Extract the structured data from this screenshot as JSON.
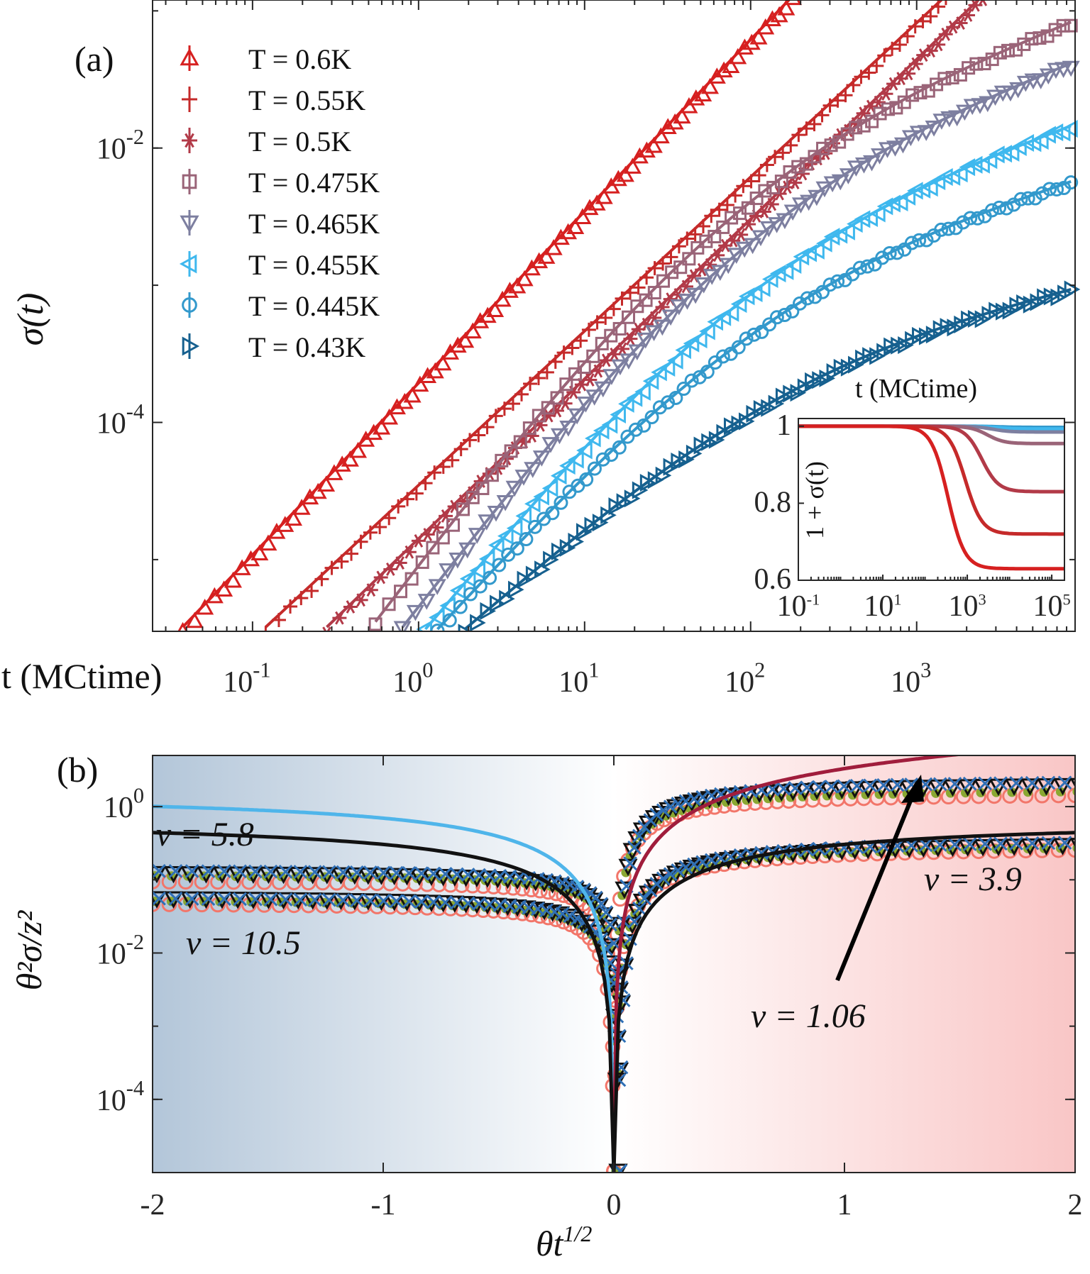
{
  "chart_data": [
    {
      "type": "line",
      "panel_label": "(a)",
      "scale": "log-log",
      "xlabel": "t  (MCtime)",
      "ylabel": "σ(t)",
      "xlim": [
        0.025,
        9000
      ],
      "ylim": [
        3e-06,
        0.12
      ],
      "xticks": [
        {
          "label": "10",
          "exp": "-1",
          "v": 0.1
        },
        {
          "label": "10",
          "exp": "0",
          "v": 1
        },
        {
          "label": "10",
          "exp": "1",
          "v": 10
        },
        {
          "label": "10",
          "exp": "2",
          "v": 100
        },
        {
          "label": "10",
          "exp": "3",
          "v": 1000
        }
      ],
      "yticks": [
        {
          "label": "10",
          "exp": "-2",
          "v": 0.01
        },
        {
          "label": "10",
          "exp": "-4",
          "v": 0.0001
        }
      ],
      "series": [
        {
          "name": "T = 0.6K",
          "color": "#d62020",
          "marker": "triangle-up",
          "x_start": 0.038,
          "x_end": 180,
          "y_start": 3e-06,
          "y_end": 0.12
        },
        {
          "name": "T = 0.55K",
          "color": "#c52a2a",
          "marker": "plus",
          "x_start": 0.12,
          "x_end": 1500,
          "y_start": 3e-06,
          "y_end": 0.12
        },
        {
          "name": "T = 0.5K",
          "color": "#b23a48",
          "marker": "asterisk",
          "x_start": 0.28,
          "x_end": 2500,
          "y_start": 3e-06,
          "y_end": 0.12
        },
        {
          "name": "T = 0.475K",
          "color": "#9a6478",
          "marker": "square",
          "x_start": 0.55,
          "x_end": 8500,
          "y_start": 3.4e-06,
          "y_end": 0.08
        },
        {
          "name": "T = 0.465K",
          "color": "#7d7fa0",
          "marker": "triangle-down",
          "x_start": 0.8,
          "x_end": 8500,
          "y_start": 3.1e-06,
          "y_end": 0.04
        },
        {
          "name": "T = 0.455K",
          "color": "#3fb8ee",
          "marker": "triangle-left",
          "x_start": 1.1,
          "x_end": 8500,
          "y_start": 3e-06,
          "y_end": 0.014
        },
        {
          "name": "T = 0.445K",
          "color": "#3399cc",
          "marker": "circle",
          "x_start": 1.3,
          "x_end": 8500,
          "y_start": 3e-06,
          "y_end": 0.0055
        },
        {
          "name": "T = 0.43K",
          "color": "#16608f",
          "marker": "triangle-right",
          "x_start": 1.9,
          "x_end": 8500,
          "y_start": 3e-06,
          "y_end": 0.0009
        }
      ],
      "inset": {
        "xlabel": "t  (MCtime)",
        "ylabel": "1 + σ(t)",
        "xlim": [
          0.1,
          200000
        ],
        "ylim": [
          0.6,
          1.02
        ],
        "xticks": [
          {
            "label": "10",
            "exp": "-1",
            "v": 0.1
          },
          {
            "label": "10",
            "exp": "1",
            "v": 10
          },
          {
            "label": "10",
            "exp": "3",
            "v": 1000
          },
          {
            "label": "10",
            "exp": "5",
            "v": 100000
          }
        ],
        "yticks": [
          {
            "label": "0.6",
            "v": 0.6
          },
          {
            "label": "0.8",
            "v": 0.8
          },
          {
            "label": "1",
            "v": 1.0
          }
        ],
        "curves": [
          {
            "color": "#d62020",
            "plateau": 0.63,
            "t_mid": 350
          },
          {
            "color": "#c52a2a",
            "plateau": 0.72,
            "t_mid": 900
          },
          {
            "color": "#b23a48",
            "plateau": 0.83,
            "t_mid": 2200
          },
          {
            "color": "#9a6478",
            "plateau": 0.955,
            "t_mid": 3000
          },
          {
            "color": "#7d7fa0",
            "plateau": 0.985,
            "t_mid": 4000
          },
          {
            "color": "#3fb8ee",
            "plateau": 0.993,
            "t_mid": 5000
          },
          {
            "color": "#3399cc",
            "plateau": 0.997,
            "t_mid": 6000
          }
        ]
      }
    },
    {
      "type": "line",
      "panel_label": "(b)",
      "scale": "semilog-y",
      "xlabel": "θt",
      "xlabel_exp": "1/2",
      "ylabel": "θ²σ/z²",
      "xlim": [
        -2,
        2
      ],
      "ylim": [
        1e-05,
        5
      ],
      "xticks": [
        {
          "label": "-2",
          "v": -2
        },
        {
          "label": "-1",
          "v": -1
        },
        {
          "label": "0",
          "v": 0
        },
        {
          "label": "1",
          "v": 1
        },
        {
          "label": "2",
          "v": 2
        }
      ],
      "yticks": [
        {
          "label": "10",
          "exp": "0",
          "v": 1
        },
        {
          "label": "10",
          "exp": "-2",
          "v": 0.01
        },
        {
          "label": "10",
          "exp": "-4",
          "v": 0.0001
        }
      ],
      "background": {
        "left": "#b3c6d9",
        "right": "#f9c6c6"
      },
      "annotations": [
        {
          "text": "v = 5.8"
        },
        {
          "text": "v = 10.5"
        },
        {
          "text": "v = 3.9"
        },
        {
          "text": "v = 1.06"
        }
      ],
      "curves": [
        {
          "color": "#4fb5ea",
          "side": "left",
          "a": 1.6
        },
        {
          "color": "#a01d3c",
          "side": "right",
          "a": 4.0
        },
        {
          "color": "#111111",
          "side": "both",
          "a": 0.7
        }
      ],
      "marker_series": [
        {
          "marker": "circle-open",
          "color": "#f2766a",
          "plateau_left": [
            0.1,
            0.05
          ],
          "plateau_right": [
            1.6,
            0.3
          ]
        },
        {
          "marker": "dot",
          "color": "#8aa832",
          "plateau_left": [
            0.12,
            0.055
          ],
          "plateau_right": [
            1.8,
            0.32
          ]
        },
        {
          "marker": "triangle-down",
          "color": "#111111",
          "plateau_left": [
            0.13,
            0.06
          ],
          "plateau_right": [
            2.2,
            0.35
          ]
        },
        {
          "marker": "x",
          "color": "#2f6fb5",
          "plateau_left": [
            0.14,
            0.06
          ],
          "plateau_right": [
            2.4,
            0.38
          ]
        }
      ]
    }
  ]
}
